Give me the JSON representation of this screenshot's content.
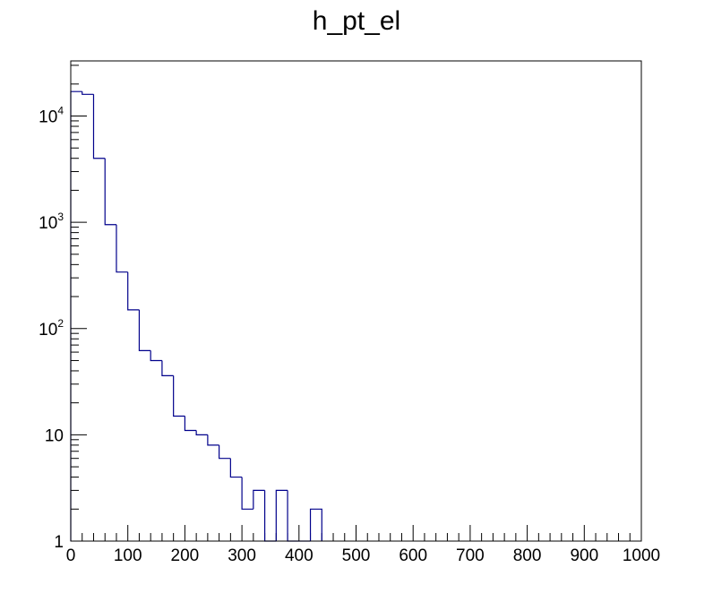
{
  "chart_data": {
    "type": "histogram",
    "title": "h_pt_el",
    "xlabel": "",
    "ylabel": "",
    "xlim": [
      0,
      1000
    ],
    "ylim": [
      1,
      33000
    ],
    "y_scale": "log",
    "grid": false,
    "legend": "none",
    "bin_width": 20,
    "series": [
      {
        "color": "#00008b",
        "bins": [
          {
            "x0": 0,
            "x1": 20,
            "value": 17000
          },
          {
            "x0": 20,
            "x1": 40,
            "value": 16000
          },
          {
            "x0": 40,
            "x1": 60,
            "value": 4000
          },
          {
            "x0": 60,
            "x1": 80,
            "value": 950
          },
          {
            "x0": 80,
            "x1": 100,
            "value": 340
          },
          {
            "x0": 100,
            "x1": 120,
            "value": 150
          },
          {
            "x0": 120,
            "x1": 140,
            "value": 62
          },
          {
            "x0": 140,
            "x1": 160,
            "value": 50
          },
          {
            "x0": 160,
            "x1": 180,
            "value": 36
          },
          {
            "x0": 180,
            "x1": 200,
            "value": 15
          },
          {
            "x0": 200,
            "x1": 220,
            "value": 11
          },
          {
            "x0": 220,
            "x1": 240,
            "value": 10
          },
          {
            "x0": 240,
            "x1": 260,
            "value": 8
          },
          {
            "x0": 260,
            "x1": 280,
            "value": 6
          },
          {
            "x0": 280,
            "x1": 300,
            "value": 4
          },
          {
            "x0": 300,
            "x1": 320,
            "value": 2
          },
          {
            "x0": 320,
            "x1": 340,
            "value": 3
          },
          {
            "x0": 340,
            "x1": 360,
            "value": 0
          },
          {
            "x0": 360,
            "x1": 380,
            "value": 3
          },
          {
            "x0": 380,
            "x1": 400,
            "value": 1
          },
          {
            "x0": 400,
            "x1": 420,
            "value": 0
          },
          {
            "x0": 420,
            "x1": 440,
            "value": 2
          }
        ]
      }
    ],
    "x_ticks": [
      {
        "value": 0,
        "label": "0"
      },
      {
        "value": 100,
        "label": "100"
      },
      {
        "value": 200,
        "label": "200"
      },
      {
        "value": 300,
        "label": "300"
      },
      {
        "value": 400,
        "label": "400"
      },
      {
        "value": 500,
        "label": "500"
      },
      {
        "value": 600,
        "label": "600"
      },
      {
        "value": 700,
        "label": "700"
      },
      {
        "value": 800,
        "label": "800"
      },
      {
        "value": 900,
        "label": "900"
      },
      {
        "value": 1000,
        "label": "1000"
      }
    ],
    "y_ticks": [
      {
        "value": 1,
        "base": "1",
        "exp": ""
      },
      {
        "value": 10,
        "base": "10",
        "exp": ""
      },
      {
        "value": 100,
        "base": "10",
        "exp": "2"
      },
      {
        "value": 1000,
        "base": "10",
        "exp": "3"
      },
      {
        "value": 10000,
        "base": "10",
        "exp": "4"
      }
    ]
  }
}
